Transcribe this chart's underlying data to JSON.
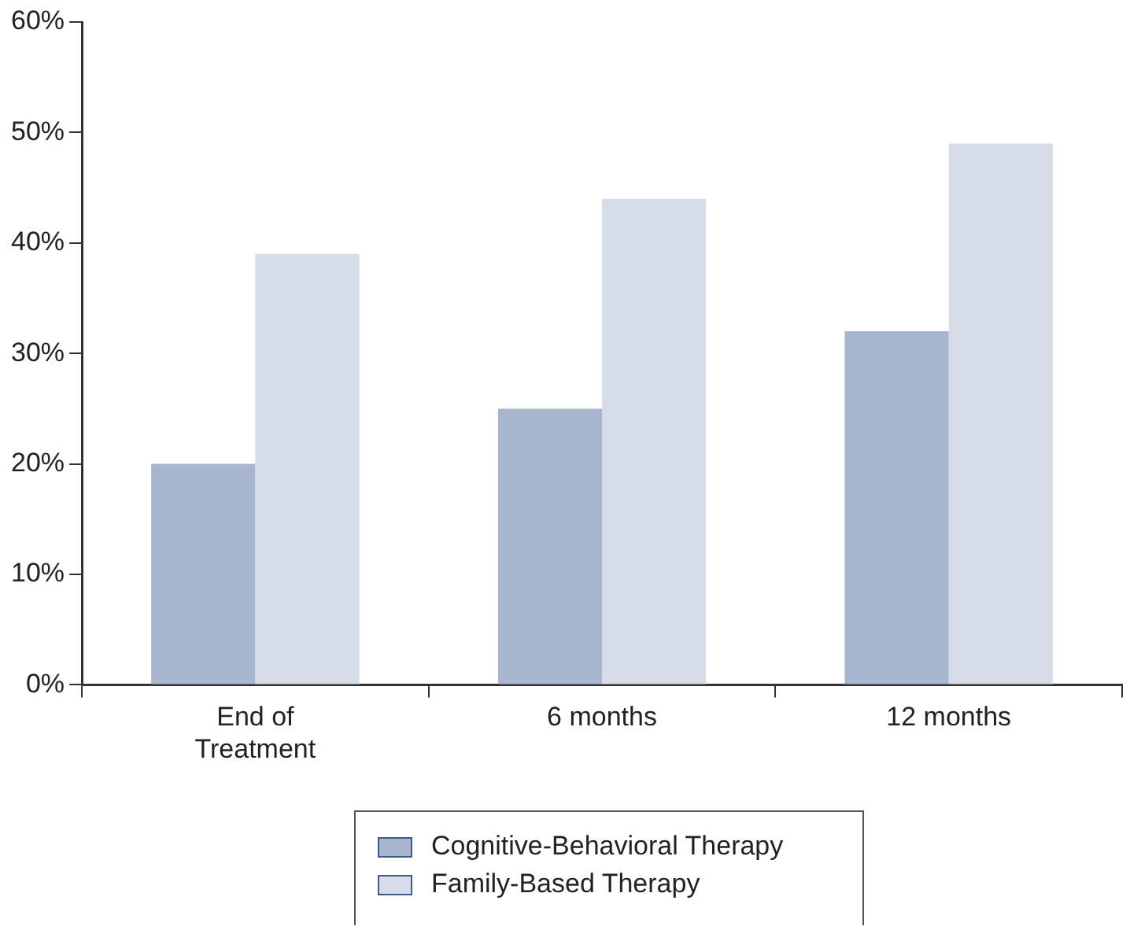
{
  "chart_data": {
    "type": "bar",
    "categories": [
      "End of\nTreatment",
      "6 months",
      "12 months"
    ],
    "series": [
      {
        "name": "Cognitive-Behavioral Therapy",
        "color": "#a9b6cf",
        "values": [
          20,
          25,
          32
        ]
      },
      {
        "name": "Family-Based Therapy",
        "color": "#d6dde8",
        "values": [
          39,
          44,
          49
        ]
      }
    ],
    "ylim": [
      0,
      60
    ],
    "yticks": [
      {
        "value": 0,
        "label": "0%"
      },
      {
        "value": 10,
        "label": "10%"
      },
      {
        "value": 20,
        "label": "20%"
      },
      {
        "value": 30,
        "label": "30%"
      },
      {
        "value": 40,
        "label": "40%"
      },
      {
        "value": 50,
        "label": "50%"
      },
      {
        "value": 60,
        "label": "60%"
      }
    ],
    "grid": false,
    "legend": "bottom"
  }
}
